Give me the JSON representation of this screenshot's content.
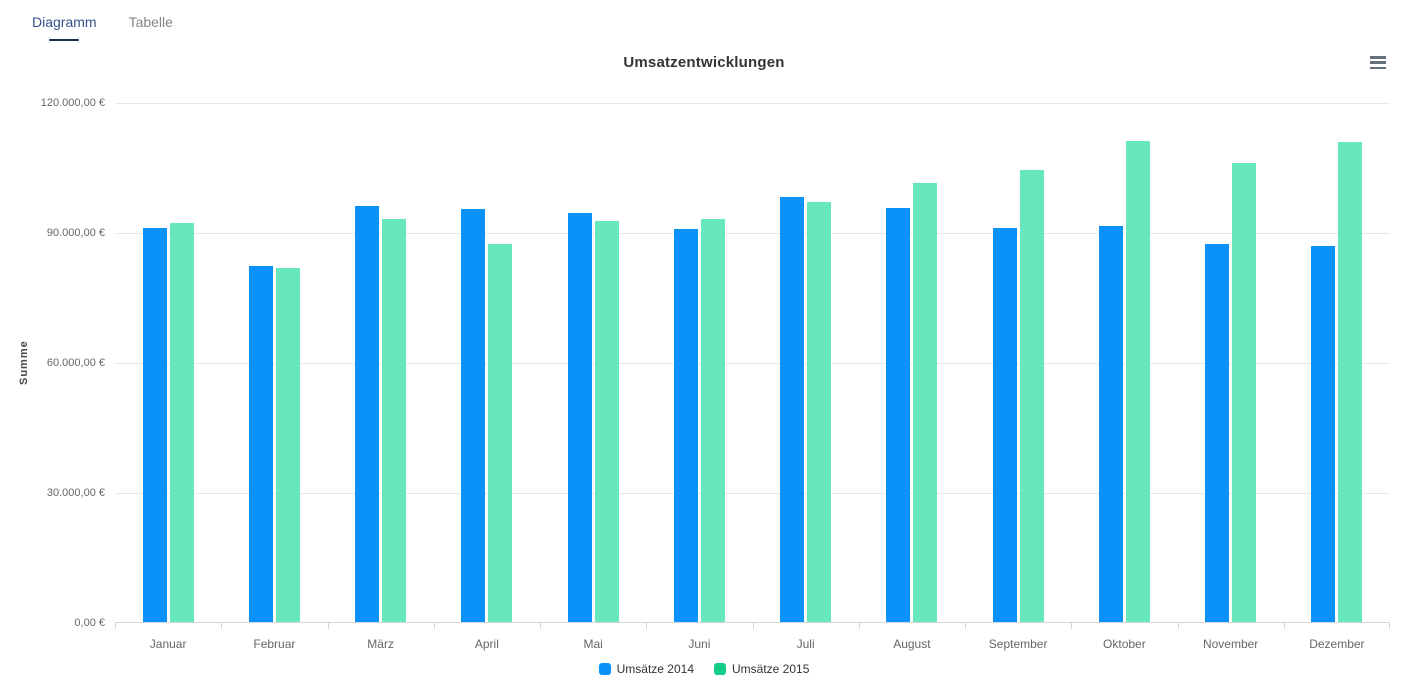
{
  "tabs": [
    {
      "label": "Diagramm",
      "active": true
    },
    {
      "label": "Tabelle",
      "active": false
    }
  ],
  "menu_icon": "hamburger-icon",
  "colors": {
    "active_tab": "#33518e",
    "inactive_tab": "#868686",
    "ink_bar": "#1c3054",
    "series_2014": "#0992fa",
    "series_2015_bar": "#66e8bc",
    "series_2015_legend": "#14cd87",
    "gridline": "#e7e7e7",
    "axis_line": "#d6d6d6",
    "tick_label": "#666666",
    "title": "#333333"
  },
  "chart_data": {
    "type": "bar",
    "title": "Umsatzentwicklungen",
    "xlabel": "",
    "ylabel": "Summe",
    "ylim": [
      0,
      120000
    ],
    "grid": true,
    "legend_position": "bottom",
    "categories": [
      "Januar",
      "Februar",
      "März",
      "April",
      "Mai",
      "Juni",
      "Juli",
      "August",
      "September",
      "Oktober",
      "November",
      "Dezember"
    ],
    "series": [
      {
        "name": "Umsätze 2014",
        "color": "#0992fa",
        "legend_color": "#0992fa",
        "values": [
          91000,
          82200,
          96000,
          95400,
          94400,
          90600,
          98100,
          95500,
          91000,
          91500,
          87300,
          86700
        ]
      },
      {
        "name": "Umsätze 2015",
        "color": "#66e8bc",
        "legend_color": "#14cd87",
        "values": [
          92000,
          81700,
          93000,
          87200,
          92500,
          92900,
          97000,
          101200,
          104300,
          111000,
          106000,
          110700
        ]
      }
    ],
    "yticks": {
      "values": [
        0,
        30000,
        60000,
        90000,
        120000
      ],
      "labels": [
        "0,00 €",
        "30.000,00 €",
        "60.000,00 €",
        "90.000,00 €",
        "120.000,00 €"
      ]
    }
  }
}
